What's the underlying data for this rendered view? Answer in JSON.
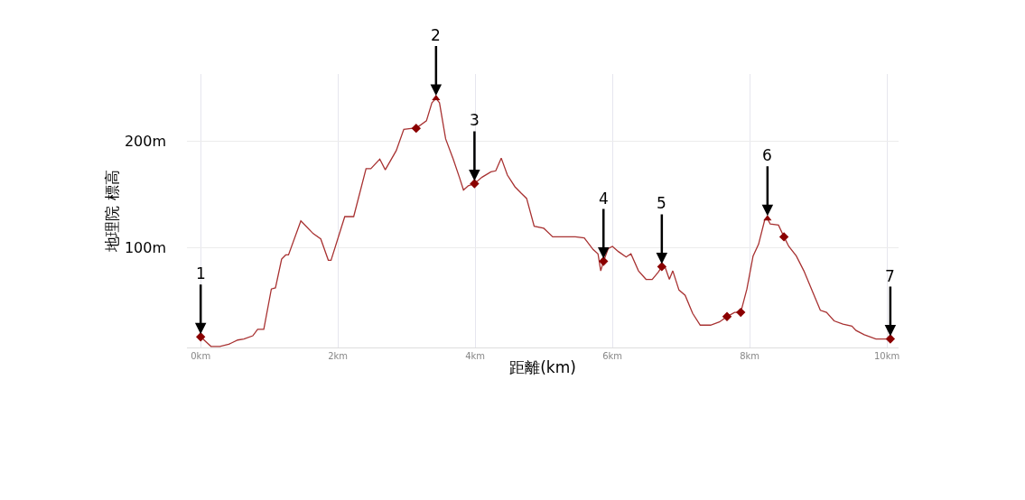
{
  "chart_data": {
    "type": "line",
    "xlabel": "距離(km)",
    "ylabel": "地理院 標高",
    "xlim": [
      -0.2,
      10.17
    ],
    "ylim": [
      6,
      263
    ],
    "xticks": [
      {
        "value": 0,
        "label": "0km"
      },
      {
        "value": 2,
        "label": "2km"
      },
      {
        "value": 4,
        "label": "4km"
      },
      {
        "value": 6,
        "label": "6km"
      },
      {
        "value": 8,
        "label": "8km"
      },
      {
        "value": 10,
        "label": "10km"
      }
    ],
    "yticks": [
      {
        "value": 100,
        "label": "100m"
      },
      {
        "value": 200,
        "label": "200m"
      }
    ],
    "grid": true,
    "series": [
      {
        "color": "#a83232",
        "marker": "none",
        "line_style": "solid",
        "x": [
          0,
          0.15,
          0.28,
          0.41,
          0.54,
          0.63,
          0.76,
          0.83,
          0.92,
          1.03,
          1.09,
          1.18,
          1.24,
          1.28,
          1.46,
          1.64,
          1.75,
          1.86,
          1.9,
          2.1,
          2.23,
          2.41,
          2.48,
          2.61,
          2.69,
          2.85,
          2.96,
          3.09,
          3.14,
          3.29,
          3.37,
          3.43,
          3.48,
          3.57,
          3.68,
          3.77,
          3.83,
          3.9,
          3.99,
          4.1,
          4.23,
          4.3,
          4.38,
          4.47,
          4.58,
          4.67,
          4.75,
          4.86,
          5.0,
          5.13,
          5.26,
          5.46,
          5.59,
          5.72,
          5.79,
          5.83,
          5.87,
          5.94,
          6.0,
          6.09,
          6.2,
          6.27,
          6.38,
          6.49,
          6.58,
          6.67,
          6.72,
          6.77,
          6.83,
          6.88,
          6.97,
          7.06,
          7.17,
          7.28,
          7.43,
          7.56,
          7.67,
          7.78,
          7.87,
          7.96,
          8.05,
          8.13,
          8.22,
          8.26,
          8.3,
          8.42,
          8.5,
          8.57,
          8.68,
          8.79,
          8.92,
          9.03,
          9.12,
          9.23,
          9.36,
          9.49,
          9.55,
          9.67,
          9.84,
          10.05
        ],
        "values": [
          16,
          7,
          7,
          9,
          13,
          14,
          17,
          23,
          23,
          61,
          62,
          89,
          93,
          93,
          125,
          113,
          108,
          88,
          88,
          129,
          129,
          174,
          174,
          183,
          173,
          191,
          211,
          212,
          212,
          219,
          236,
          240,
          236,
          202,
          183,
          166,
          154,
          158,
          160,
          166,
          171,
          172,
          184,
          168,
          157,
          151,
          146,
          120,
          118,
          110,
          110,
          110,
          109,
          98,
          94,
          78,
          87,
          99,
          101,
          96,
          91,
          94,
          78,
          70,
          70,
          77,
          82,
          81,
          70,
          78,
          60,
          55,
          38,
          27,
          27,
          30,
          35,
          39,
          39,
          61,
          92,
          103,
          126,
          127,
          122,
          121,
          110,
          101,
          92,
          78,
          58,
          41,
          39,
          31,
          28,
          26,
          22,
          18,
          14,
          14
        ]
      },
      {
        "type": "scatter",
        "color": "#8b0000",
        "marker": "diamond",
        "x": [
          0,
          3.14,
          3.99,
          5.87,
          6.72,
          7.67,
          7.87,
          8.5,
          10.05
        ],
        "values": [
          16,
          212,
          160,
          87,
          82,
          35,
          39,
          110,
          14
        ]
      },
      {
        "type": "scatter",
        "color": "#8b0000",
        "marker": "triangle",
        "x": [
          3.43,
          8.26
        ],
        "values": [
          240,
          127
        ]
      }
    ],
    "annotations": [
      {
        "text": "1",
        "x": 0,
        "y": 16
      },
      {
        "text": "2",
        "x": 3.43,
        "y": 240
      },
      {
        "text": "3",
        "x": 3.99,
        "y": 160
      },
      {
        "text": "4",
        "x": 5.87,
        "y": 87
      },
      {
        "text": "5",
        "x": 6.72,
        "y": 82
      },
      {
        "text": "6",
        "x": 8.26,
        "y": 127
      },
      {
        "text": "7",
        "x": 10.05,
        "y": 14
      }
    ]
  }
}
